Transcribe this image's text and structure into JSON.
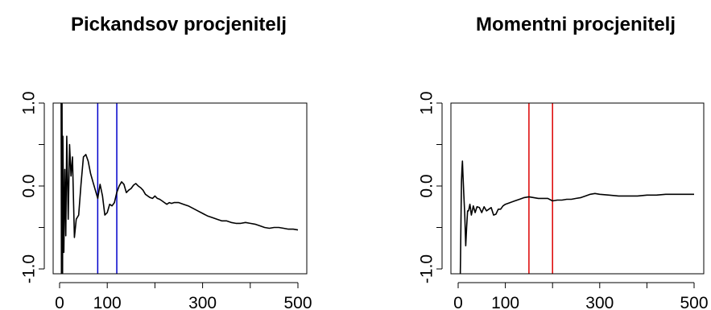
{
  "chart_data": [
    {
      "type": "line",
      "title": "Pickandsov procjenitelj",
      "xlabel": "",
      "ylabel": "",
      "xlim": [
        0,
        500
      ],
      "ylim": [
        -1,
        1
      ],
      "xticks": [
        0,
        100,
        300,
        500
      ],
      "xtick_minor": [
        200,
        400
      ],
      "yticks": [
        -1.0,
        0.0,
        1.0
      ],
      "yticklabels": [
        "-1.0",
        "0.0",
        "1.0"
      ],
      "yticks_minor": [
        -0.5,
        0.5
      ],
      "grid": false,
      "series": [
        {
          "color": "#000000",
          "x": [
            3,
            4,
            5,
            6,
            7,
            9,
            11,
            13,
            15,
            18,
            21,
            24,
            27,
            31,
            35,
            40,
            45,
            50,
            55,
            60,
            65,
            70,
            75,
            80,
            85,
            90,
            95,
            100,
            105,
            110,
            115,
            120,
            125,
            130,
            135,
            140,
            145,
            150,
            155,
            160,
            165,
            170,
            175,
            180,
            185,
            190,
            195,
            200,
            205,
            210,
            215,
            220,
            225,
            230,
            235,
            240,
            245,
            250,
            260,
            270,
            280,
            290,
            300,
            310,
            320,
            330,
            340,
            350,
            360,
            370,
            380,
            390,
            400,
            410,
            420,
            430,
            440,
            450,
            460,
            470,
            480,
            490,
            500
          ],
          "y": [
            1.8,
            -1.6,
            1.2,
            -1.5,
            0.6,
            -0.8,
            0.2,
            -0.6,
            0.6,
            -0.4,
            0.5,
            0.12,
            0.35,
            -0.62,
            -0.4,
            -0.35,
            0.02,
            0.35,
            0.38,
            0.3,
            0.15,
            0.05,
            -0.05,
            -0.15,
            0.02,
            -0.12,
            -0.35,
            -0.32,
            -0.22,
            -0.24,
            -0.2,
            -0.08,
            0.0,
            0.05,
            0.02,
            -0.08,
            -0.05,
            -0.03,
            0.01,
            0.03,
            0.0,
            -0.02,
            -0.05,
            -0.1,
            -0.12,
            -0.14,
            -0.15,
            -0.12,
            -0.15,
            -0.16,
            -0.18,
            -0.2,
            -0.22,
            -0.2,
            -0.21,
            -0.2,
            -0.2,
            -0.2,
            -0.22,
            -0.24,
            -0.27,
            -0.3,
            -0.33,
            -0.36,
            -0.38,
            -0.4,
            -0.42,
            -0.42,
            -0.44,
            -0.45,
            -0.45,
            -0.44,
            -0.45,
            -0.46,
            -0.48,
            -0.5,
            -0.51,
            -0.5,
            -0.5,
            -0.51,
            -0.52,
            -0.52,
            -0.53
          ]
        }
      ],
      "vlines": [
        {
          "x": 80,
          "color": "#0000cc"
        },
        {
          "x": 120,
          "color": "#0000cc"
        }
      ]
    },
    {
      "type": "line",
      "title": "Momentni procjenitelj",
      "xlabel": "",
      "ylabel": "",
      "xlim": [
        0,
        500
      ],
      "ylim": [
        -1,
        1
      ],
      "xticks": [
        0,
        100,
        300,
        500
      ],
      "xtick_minor": [
        200,
        400
      ],
      "yticks": [
        -1.0,
        0.0,
        1.0
      ],
      "yticklabels": [
        "-1.0",
        "0.0",
        "1.0"
      ],
      "yticks_minor": [
        -0.5,
        0.5
      ],
      "grid": false,
      "series": [
        {
          "color": "#000000",
          "x": [
            3,
            4,
            5,
            6,
            7,
            8,
            9,
            10,
            12,
            14,
            16,
            18,
            20,
            22,
            25,
            28,
            32,
            36,
            40,
            45,
            50,
            55,
            60,
            65,
            70,
            75,
            80,
            85,
            90,
            95,
            100,
            110,
            120,
            130,
            140,
            150,
            160,
            170,
            180,
            190,
            200,
            210,
            220,
            230,
            240,
            250,
            260,
            270,
            280,
            290,
            300,
            320,
            340,
            360,
            380,
            400,
            420,
            440,
            460,
            480,
            500
          ],
          "y": [
            -1.6,
            -1.3,
            -0.9,
            -0.4,
            0.05,
            0.2,
            0.3,
            0.15,
            -0.1,
            -0.35,
            -0.72,
            -0.5,
            -0.3,
            -0.3,
            -0.22,
            -0.35,
            -0.24,
            -0.32,
            -0.25,
            -0.26,
            -0.32,
            -0.25,
            -0.3,
            -0.28,
            -0.26,
            -0.35,
            -0.34,
            -0.28,
            -0.28,
            -0.24,
            -0.22,
            -0.2,
            -0.18,
            -0.16,
            -0.14,
            -0.13,
            -0.14,
            -0.15,
            -0.15,
            -0.15,
            -0.18,
            -0.17,
            -0.17,
            -0.16,
            -0.16,
            -0.15,
            -0.14,
            -0.12,
            -0.1,
            -0.09,
            -0.1,
            -0.11,
            -0.12,
            -0.12,
            -0.12,
            -0.11,
            -0.11,
            -0.1,
            -0.1,
            -0.1,
            -0.1
          ]
        }
      ],
      "vlines": [
        {
          "x": 150,
          "color": "#dd0000"
        },
        {
          "x": 200,
          "color": "#dd0000"
        }
      ]
    }
  ]
}
